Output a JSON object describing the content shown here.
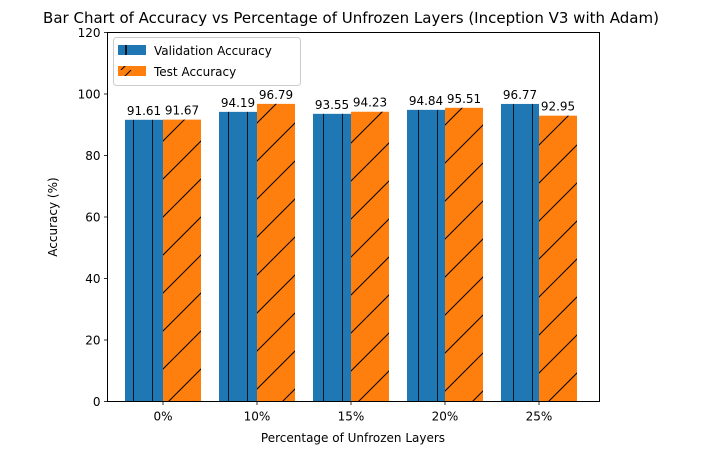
{
  "chart_data": {
    "type": "bar",
    "title": "Bar Chart of Accuracy vs Percentage of Unfrozen Layers (Inception V3 with Adam)",
    "xlabel": "Percentage of Unfrozen Layers",
    "ylabel": "Accuracy (%)",
    "categories": [
      "0%",
      "10%",
      "15%",
      "20%",
      "25%"
    ],
    "ylim": [
      0,
      120
    ],
    "yticks": [
      0,
      20,
      40,
      60,
      80,
      100,
      120
    ],
    "grid": false,
    "legend_position": "top-left",
    "series": [
      {
        "name": "Validation Accuracy",
        "values": [
          91.61,
          94.19,
          93.55,
          94.84,
          96.77
        ],
        "labels": [
          "91.61",
          "94.19",
          "93.55",
          "94.84",
          "96.77"
        ],
        "color": "#1f77b4",
        "hatch": "vertical"
      },
      {
        "name": "Test Accuracy",
        "values": [
          91.67,
          96.79,
          94.23,
          95.51,
          92.95
        ],
        "labels": [
          "91.67",
          "96.79",
          "94.23",
          "95.51",
          "92.95"
        ],
        "color": "#ff7f0e",
        "hatch": "diagonal"
      }
    ]
  }
}
